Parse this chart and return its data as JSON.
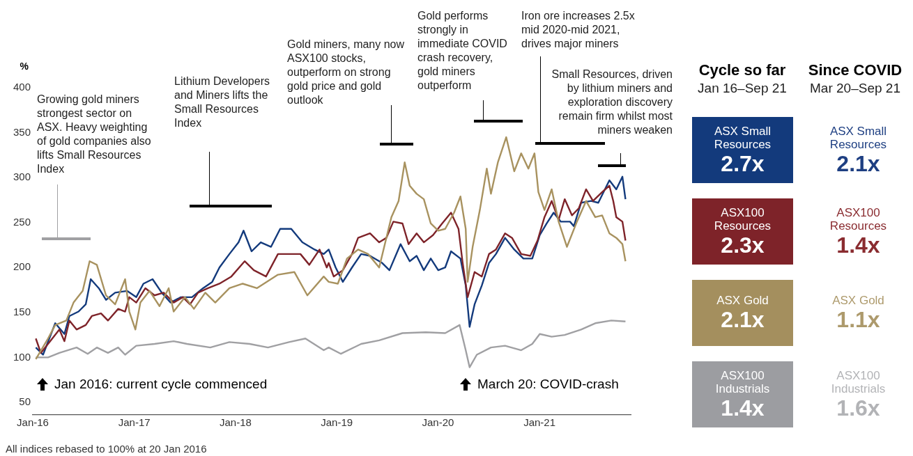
{
  "chart_data": [
    {
      "type": "line",
      "ylabel": "%",
      "xlim": [
        "2016-01-01",
        "2021-11-26"
      ],
      "xticks": [
        {
          "value": "2016-01-01",
          "label": "Jan-16"
        },
        {
          "value": "2017-01-01",
          "label": "Jan-17"
        },
        {
          "value": "2018-01-01",
          "label": "Jan-18"
        },
        {
          "value": "2019-01-01",
          "label": "Jan-19"
        },
        {
          "value": "2020-01-01",
          "label": "Jan-20"
        },
        {
          "value": "2021-01-01",
          "label": "Jan-21"
        }
      ],
      "ylim": [
        36,
        400
      ],
      "yticks": [
        50,
        100,
        150,
        200,
        250,
        300,
        350,
        400
      ],
      "grid": false,
      "legend": false,
      "marker": "none",
      "series": [
        {
          "color": "#a8925f",
          "x": [
            "2016-01-12",
            "2016-02-25",
            "2016-03-22",
            "2016-05-01",
            "2016-05-27",
            "2016-06-29",
            "2016-07-24",
            "2016-08-19",
            "2016-09-21",
            "2016-10-24",
            "2016-11-29",
            "2016-12-14",
            "2017-01-05",
            "2017-01-23",
            "2017-02-25",
            "2017-04-02",
            "2017-05-05",
            "2017-05-23",
            "2017-07-03",
            "2017-08-04",
            "2017-09-14",
            "2017-10-20",
            "2017-12-10",
            "2018-01-27",
            "2018-03-19",
            "2018-06-03",
            "2018-08-01",
            "2018-09-17",
            "2018-11-15",
            "2018-12-03",
            "2019-01-05",
            "2019-02-07",
            "2019-03-19",
            "2019-04-24",
            "2019-06-03",
            "2019-07-17",
            "2019-08-12",
            "2019-09-03",
            "2019-09-21",
            "2019-10-16",
            "2019-11-11",
            "2019-12-06",
            "2020-01-02",
            "2020-01-27",
            "2020-02-28",
            "2020-03-22",
            "2020-04-10",
            "2020-04-17",
            "2020-05-05",
            "2020-05-31",
            "2020-06-25",
            "2020-07-10",
            "2020-08-04",
            "2020-09-03",
            "2020-10-02",
            "2020-10-27",
            "2020-11-22",
            "2020-12-14",
            "2020-12-28",
            "2021-01-19",
            "2021-02-14",
            "2021-03-11",
            "2021-04-10",
            "2021-05-16",
            "2021-06-18",
            "2021-07-21",
            "2021-08-15",
            "2021-09-10",
            "2021-10-05",
            "2021-10-27",
            "2021-11-07"
          ],
          "values": [
            98,
            121,
            136,
            141,
            161,
            174,
            207,
            203,
            169,
            159,
            187,
            151,
            131,
            161,
            174,
            157,
            177,
            151,
            167,
            154,
            172,
            161,
            177,
            182,
            177,
            192,
            195,
            169,
            190,
            184,
            182,
            210,
            220,
            215,
            200,
            256,
            274,
            317,
            291,
            282,
            276,
            249,
            241,
            243,
            261,
            279,
            243,
            184,
            223,
            264,
            310,
            282,
            317,
            345,
            307,
            327,
            310,
            327,
            284,
            264,
            287,
            251,
            223,
            251,
            274,
            256,
            258,
            238,
            233,
            226,
            207
          ]
        },
        {
          "color": "#7e2329",
          "x": [
            "2016-01-12",
            "2016-01-30",
            "2016-03-04",
            "2016-04-06",
            "2016-04-24",
            "2016-05-12",
            "2016-06-07",
            "2016-07-10",
            "2016-08-01",
            "2016-09-03",
            "2016-09-28",
            "2016-11-04",
            "2016-11-29",
            "2016-12-14",
            "2017-01-08",
            "2017-02-10",
            "2017-03-15",
            "2017-04-17",
            "2017-05-23",
            "2017-06-25",
            "2017-07-21",
            "2017-08-19",
            "2017-09-24",
            "2017-11-04",
            "2017-12-17",
            "2018-02-03",
            "2018-03-08",
            "2018-04-21",
            "2018-06-03",
            "2018-07-13",
            "2018-08-23",
            "2018-09-24",
            "2018-10-31",
            "2018-11-26",
            "2018-12-03",
            "2018-12-21",
            "2019-01-23",
            "2019-02-25",
            "2019-03-19",
            "2019-05-01",
            "2019-06-03",
            "2019-06-29",
            "2019-07-24",
            "2019-08-26",
            "2019-09-17",
            "2019-10-16",
            "2019-11-11",
            "2019-12-14",
            "2020-01-16",
            "2020-02-17",
            "2020-03-15",
            "2020-03-30",
            "2020-04-17",
            "2020-05-12",
            "2020-06-07",
            "2020-07-03",
            "2020-07-28",
            "2020-08-30",
            "2020-09-24",
            "2020-10-27",
            "2020-11-29",
            "2020-12-25",
            "2021-01-19",
            "2021-02-14",
            "2021-03-11",
            "2021-04-02",
            "2021-04-28",
            "2021-05-23",
            "2021-06-18",
            "2021-07-13",
            "2021-08-15",
            "2021-09-10",
            "2021-09-24",
            "2021-10-05",
            "2021-10-27",
            "2021-11-07"
          ],
          "values": [
            121,
            105,
            118,
            131,
            118,
            141,
            131,
            136,
            146,
            149,
            141,
            154,
            151,
            167,
            161,
            177,
            169,
            172,
            161,
            167,
            159,
            172,
            177,
            182,
            190,
            207,
            197,
            190,
            215,
            215,
            215,
            203,
            220,
            200,
            205,
            190,
            197,
            215,
            233,
            238,
            228,
            233,
            251,
            249,
            226,
            238,
            228,
            236,
            249,
            261,
            243,
            205,
            167,
            195,
            190,
            215,
            220,
            238,
            233,
            215,
            213,
            230,
            256,
            274,
            253,
            276,
            258,
            266,
            287,
            274,
            284,
            291,
            274,
            256,
            251,
            230
          ]
        },
        {
          "color": "#133a7c",
          "x": [
            "2016-01-12",
            "2016-02-07",
            "2016-03-22",
            "2016-04-24",
            "2016-05-12",
            "2016-06-14",
            "2016-07-10",
            "2016-07-28",
            "2016-08-26",
            "2016-09-21",
            "2016-10-24",
            "2016-12-06",
            "2017-01-08",
            "2017-02-03",
            "2017-03-08",
            "2017-04-10",
            "2017-05-12",
            "2017-06-18",
            "2017-07-28",
            "2017-09-06",
            "2017-10-09",
            "2017-11-04",
            "2017-12-10",
            "2018-01-12",
            "2018-01-30",
            "2018-02-28",
            "2018-04-02",
            "2018-05-09",
            "2018-06-11",
            "2018-07-21",
            "2018-08-30",
            "2018-10-13",
            "2018-11-15",
            "2018-12-03",
            "2018-12-28",
            "2019-01-23",
            "2019-02-25",
            "2019-03-30",
            "2019-05-01",
            "2019-06-14",
            "2019-07-10",
            "2019-08-19",
            "2019-09-21",
            "2019-10-16",
            "2019-11-11",
            "2019-12-06",
            "2020-01-02",
            "2020-01-27",
            "2020-02-17",
            "2020-03-22",
            "2020-04-10",
            "2020-04-24",
            "2020-05-12",
            "2020-06-07",
            "2020-07-03",
            "2020-07-28",
            "2020-08-30",
            "2020-10-02",
            "2020-11-04",
            "2020-12-06",
            "2021-01-02",
            "2021-01-27",
            "2021-02-21",
            "2021-03-19",
            "2021-04-21",
            "2021-05-05",
            "2021-05-31",
            "2021-07-06",
            "2021-08-01",
            "2021-09-10",
            "2021-10-05",
            "2021-10-27",
            "2021-11-07"
          ],
          "values": [
            111,
            103,
            138,
            126,
            146,
            151,
            159,
            187,
            177,
            164,
            172,
            174,
            167,
            182,
            187,
            172,
            161,
            167,
            167,
            177,
            184,
            200,
            215,
            228,
            241,
            218,
            228,
            223,
            243,
            243,
            228,
            220,
            215,
            220,
            200,
            184,
            200,
            215,
            213,
            205,
            197,
            226,
            207,
            213,
            197,
            210,
            197,
            200,
            218,
            210,
            180,
            134,
            159,
            180,
            205,
            215,
            233,
            220,
            210,
            210,
            236,
            249,
            261,
            251,
            251,
            246,
            272,
            274,
            272,
            297,
            287,
            301,
            276
          ]
        },
        {
          "color": "#a0a0a3",
          "x": [
            "2016-01-12",
            "2016-02-25",
            "2016-04-06",
            "2016-06-07",
            "2016-07-17",
            "2016-08-19",
            "2016-09-28",
            "2016-11-04",
            "2016-11-29",
            "2017-01-08",
            "2017-03-15",
            "2017-05-23",
            "2017-07-10",
            "2017-10-02",
            "2017-12-10",
            "2018-02-21",
            "2018-04-28",
            "2018-07-13",
            "2018-09-10",
            "2018-11-15",
            "2018-12-03",
            "2019-01-16",
            "2019-03-30",
            "2019-06-03",
            "2019-08-26",
            "2019-11-18",
            "2020-01-27",
            "2020-03-19",
            "2020-04-10",
            "2020-04-24",
            "2020-05-20",
            "2020-07-10",
            "2020-08-30",
            "2020-10-27",
            "2020-12-06",
            "2021-01-02",
            "2021-02-14",
            "2021-04-02",
            "2021-05-31",
            "2021-07-21",
            "2021-09-17",
            "2021-11-07"
          ],
          "values": [
            100,
            100,
            105,
            111,
            104,
            111,
            105,
            111,
            103,
            113,
            115,
            118,
            115,
            111,
            117,
            115,
            111,
            117,
            121,
            108,
            111,
            104,
            115,
            119,
            127,
            128,
            127,
            136,
            108,
            89,
            103,
            111,
            113,
            108,
            115,
            126,
            123,
            125,
            131,
            138,
            141,
            140
          ]
        }
      ],
      "annotations": [
        "Growing gold miners strongest sector on ASX. Heavy weighting of gold companies also lifts Small Resources Index",
        "Lithium Developers and Miners lifts the Small Resources Index",
        "Gold miners, many now ASX100 stocks, outperform on strong gold price and gold outlook",
        "Gold performs strongly in immediate COVID crash recovery, gold miners outperform",
        "Iron ore increases 2.5x mid 2020-mid 2021, drives major miners",
        "Small Resources, driven by lithium miners and exploration discovery remain firm whilst most miners weaken",
        "Jan 2016: current cycle commenced",
        "March 20: COVID-crash",
        "All indices rebased to 100% at 20 Jan 2016"
      ]
    },
    {
      "type": "other",
      "categories": [
        "ASX Small Resources",
        "ASX100 Resources",
        "ASX Gold",
        "ASX100 Industrials"
      ],
      "series": [
        {
          "name": "Cycle so far",
          "colors": [
            "#133a7c",
            "#7e2329",
            "#a48f5e",
            "#9c9da1"
          ],
          "values": [
            2.7,
            2.3,
            2.1,
            1.4
          ],
          "value_labels": [
            "2.7x",
            "2.3x",
            "2.1x",
            "1.4x"
          ]
        },
        {
          "name": "Since COVID",
          "colors": [
            "#1e3f82",
            "#8a2c30",
            "#ad9a6c",
            "#b2b3b6"
          ],
          "values": [
            2.1,
            1.4,
            1.1,
            1.6
          ],
          "value_labels": [
            "2.1x",
            "1.4x",
            "1.1x",
            "1.6x"
          ]
        }
      ],
      "annotations": [
        "Jan 16–Sep 21",
        "Mar 20–Sep 21"
      ]
    }
  ]
}
